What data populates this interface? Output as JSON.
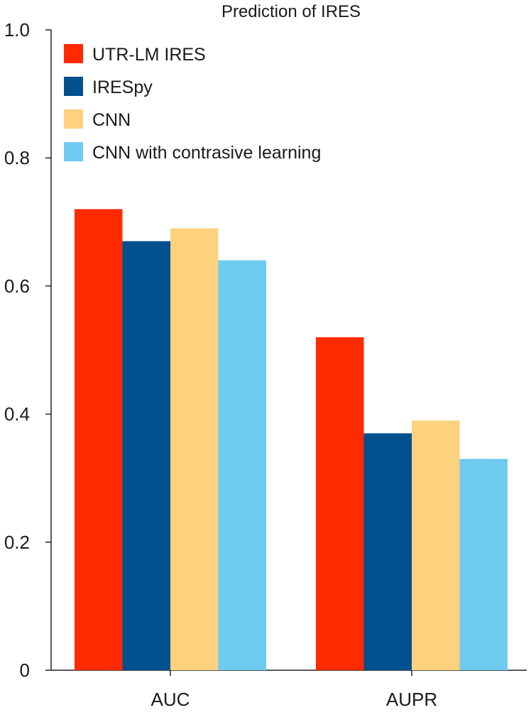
{
  "chart_data": {
    "type": "bar",
    "title": "Prediction of IRES",
    "xlabel": "",
    "ylabel": "",
    "categories": [
      "AUC",
      "AUPR"
    ],
    "series": [
      {
        "name": "UTR-LM IRES",
        "color": "#ff2a00",
        "values": [
          0.72,
          0.52
        ]
      },
      {
        "name": "IRESpy",
        "color": "#03508e",
        "values": [
          0.67,
          0.37
        ]
      },
      {
        "name": "CNN",
        "color": "#fdd17e",
        "values": [
          0.69,
          0.39
        ]
      },
      {
        "name": "CNN with contrasive learning",
        "color": "#6fcaf0",
        "values": [
          0.64,
          0.33
        ]
      }
    ],
    "ylim": [
      0,
      1.0
    ],
    "yticks": [
      0,
      0.2,
      0.4,
      0.6,
      0.8,
      1.0
    ],
    "ytick_labels": [
      "0",
      "0.2",
      "0.4",
      "0.6",
      "0.8",
      "1.0"
    ],
    "grid": false,
    "legend_position": "top-left"
  }
}
